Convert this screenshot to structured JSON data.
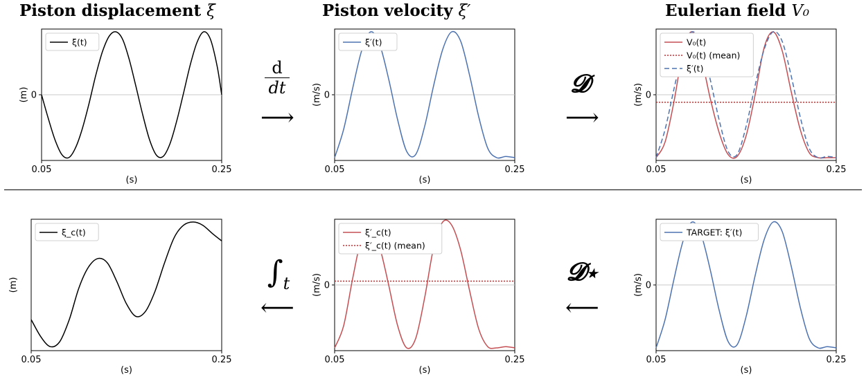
{
  "titles": {
    "displacement": "Piston displacement",
    "displacement_sym": "ξ",
    "velocity": "Piston velocity",
    "velocity_sym": "ξ′",
    "eulerian": "Eulerian field",
    "eulerian_sym": "V₀"
  },
  "operators": {
    "derivative_num": "d",
    "derivative_den": "dt",
    "forward_op": "𝓓",
    "inverse_op": "𝓓⋆",
    "integral": "∫",
    "integral_sub": "t",
    "arrow_right": "⟶",
    "arrow_left": "⟵"
  },
  "colors": {
    "black": "#000000",
    "blue": "#4c72b0",
    "red": "#c44e52",
    "red_dotted": "#d62728",
    "zero_line": "#c8c8c8"
  },
  "chart_data": [
    {
      "id": "top-left",
      "type": "line",
      "x_ticks": [
        "0.05",
        "0.25"
      ],
      "xlabel": "(s)",
      "ylabel": "(m)",
      "y_ticks": [
        "0"
      ],
      "legend": "top-left",
      "xlim": [
        0.05,
        0.25
      ],
      "series": [
        {
          "name": "ξ(t)",
          "color": "black",
          "style": "solid",
          "x": [
            0.05,
            0.0575,
            0.065,
            0.0725,
            0.08,
            0.0875,
            0.095,
            0.1025,
            0.11,
            0.1175,
            0.125,
            0.1325,
            0.14,
            0.1475,
            0.155,
            0.1625,
            0.17,
            0.1775,
            0.185,
            0.1925,
            0.2,
            0.2075,
            0.215,
            0.2225,
            0.23,
            0.2375,
            0.245,
            0.25
          ],
          "y": [
            0,
            -0.38,
            -0.72,
            -0.95,
            -1,
            -0.85,
            -0.55,
            -0.15,
            0.3,
            0.68,
            0.93,
            1,
            0.88,
            0.55,
            0.12,
            -0.33,
            -0.72,
            -0.96,
            -0.98,
            -0.78,
            -0.42,
            0.02,
            0.47,
            0.83,
            1,
            0.88,
            0.45,
            0
          ]
        }
      ],
      "ylim": [
        -1,
        1
      ]
    },
    {
      "id": "top-mid",
      "type": "line",
      "x_ticks": [
        "0.05",
        "0.25"
      ],
      "xlabel": "(s)",
      "ylabel": "(m/s)",
      "y_ticks": [
        "0"
      ],
      "legend": "top-left",
      "xlim": [
        0.05,
        0.25
      ],
      "series": [
        {
          "name": "ξ′(t)",
          "color": "blue",
          "style": "solid",
          "x": [
            0.05,
            0.06,
            0.07,
            0.08,
            0.09,
            0.1,
            0.11,
            0.12,
            0.13,
            0.14,
            0.15,
            0.16,
            0.17,
            0.18,
            0.19,
            0.2,
            0.21,
            0.22,
            0.23,
            0.24,
            0.25
          ],
          "y": [
            -1,
            -0.55,
            0.1,
            0.7,
            1,
            0.8,
            0.25,
            -0.4,
            -0.9,
            -0.95,
            -0.5,
            0.15,
            0.72,
            1,
            0.85,
            0.3,
            -0.35,
            -0.85,
            -1,
            -0.98,
            -1
          ]
        }
      ],
      "ylim": [
        -1,
        1
      ]
    },
    {
      "id": "top-right",
      "type": "line",
      "x_ticks": [
        "0.05",
        "0.25"
      ],
      "xlabel": "(s)",
      "ylabel": "(m/s)",
      "y_ticks": [
        "0"
      ],
      "legend": "top-left",
      "xlim": [
        0.05,
        0.25
      ],
      "series": [
        {
          "name": "V₀(t)",
          "color": "red",
          "style": "solid",
          "x": [
            0.05,
            0.06,
            0.07,
            0.08,
            0.09,
            0.1,
            0.11,
            0.12,
            0.13,
            0.14,
            0.15,
            0.16,
            0.17,
            0.18,
            0.19,
            0.2,
            0.21,
            0.22,
            0.23,
            0.24,
            0.25
          ],
          "y": [
            -1,
            -0.75,
            -0.1,
            0.7,
            1,
            0.6,
            -0.05,
            -0.6,
            -0.95,
            -0.98,
            -0.65,
            0,
            0.75,
            1,
            0.7,
            0.05,
            -0.55,
            -0.92,
            -1,
            -1,
            -1
          ]
        },
        {
          "name": "V₀(t) (mean)",
          "color": "red_dotted",
          "style": "dotted",
          "x": [
            0.05,
            0.25
          ],
          "y": [
            -0.12,
            -0.12
          ]
        },
        {
          "name": "ξ′(t)",
          "color": "blue",
          "style": "dashed",
          "x": [
            0.05,
            0.06,
            0.07,
            0.08,
            0.09,
            0.1,
            0.11,
            0.12,
            0.13,
            0.14,
            0.15,
            0.16,
            0.17,
            0.18,
            0.19,
            0.2,
            0.21,
            0.22,
            0.23,
            0.24,
            0.25
          ],
          "y": [
            -1,
            -0.55,
            0.1,
            0.7,
            1,
            0.8,
            0.25,
            -0.4,
            -0.9,
            -0.95,
            -0.5,
            0.15,
            0.72,
            1,
            0.85,
            0.3,
            -0.35,
            -0.85,
            -1,
            -0.98,
            -1
          ]
        }
      ],
      "ylim": [
        -1,
        1
      ]
    },
    {
      "id": "bottom-left",
      "type": "line",
      "x_ticks": [
        "0.05",
        "0.25"
      ],
      "xlabel": "(s)",
      "ylabel": "(m)",
      "y_ticks": [],
      "legend": "top-left",
      "xlim": [
        0.05,
        0.25
      ],
      "series": [
        {
          "name": "ξ_c(t)",
          "color": "black",
          "style": "solid",
          "x": [
            0.05,
            0.06,
            0.07,
            0.08,
            0.09,
            0.1,
            0.11,
            0.12,
            0.13,
            0.14,
            0.15,
            0.16,
            0.17,
            0.18,
            0.19,
            0.2,
            0.21,
            0.22,
            0.23,
            0.24,
            0.25
          ],
          "y": [
            -0.55,
            -0.82,
            -0.98,
            -0.9,
            -0.55,
            -0.05,
            0.28,
            0.42,
            0.35,
            0.05,
            -0.3,
            -0.5,
            -0.42,
            -0.1,
            0.35,
            0.75,
            0.95,
            1,
            0.95,
            0.82,
            0.7
          ]
        }
      ],
      "ylim": [
        -1,
        1
      ]
    },
    {
      "id": "bottom-mid",
      "type": "line",
      "x_ticks": [
        "0.05",
        "0.25"
      ],
      "xlabel": "(s)",
      "ylabel": "(m/s)",
      "y_ticks": [
        "0"
      ],
      "legend": "top-left",
      "xlim": [
        0.05,
        0.25
      ],
      "series": [
        {
          "name": "ξ′_c(t)",
          "color": "red",
          "style": "solid",
          "x": [
            0.05,
            0.06,
            0.07,
            0.08,
            0.09,
            0.1,
            0.11,
            0.12,
            0.13,
            0.14,
            0.15,
            0.16,
            0.17,
            0.18,
            0.19,
            0.2,
            0.21,
            0.22,
            0.23,
            0.24,
            0.25
          ],
          "y": [
            -1,
            -0.65,
            0.1,
            0.75,
            0.92,
            0.6,
            0,
            -0.65,
            -1,
            -0.85,
            -0.2,
            0.6,
            1,
            0.95,
            0.55,
            -0.1,
            -0.7,
            -0.98,
            -1,
            -0.98,
            -1
          ]
        },
        {
          "name": "ξ′_c(t) (mean)",
          "color": "red_dotted",
          "style": "dotted",
          "x": [
            0.05,
            0.25
          ],
          "y": [
            0.06,
            0.06
          ]
        }
      ],
      "ylim": [
        -1,
        1
      ]
    },
    {
      "id": "bottom-right",
      "type": "line",
      "x_ticks": [
        "0.05",
        "0.25"
      ],
      "xlabel": "(s)",
      "ylabel": "(m/s)",
      "y_ticks": [
        "0"
      ],
      "legend": "top-left",
      "xlim": [
        0.05,
        0.25
      ],
      "series": [
        {
          "name": "TARGET: ξ′(t)",
          "color": "blue",
          "style": "solid",
          "x": [
            0.05,
            0.06,
            0.07,
            0.08,
            0.09,
            0.1,
            0.11,
            0.12,
            0.13,
            0.14,
            0.15,
            0.16,
            0.17,
            0.18,
            0.19,
            0.2,
            0.21,
            0.22,
            0.23,
            0.24,
            0.25
          ],
          "y": [
            -1,
            -0.55,
            0.1,
            0.7,
            1,
            0.8,
            0.25,
            -0.4,
            -0.9,
            -0.95,
            -0.5,
            0.15,
            0.72,
            1,
            0.85,
            0.3,
            -0.35,
            -0.85,
            -1,
            -0.98,
            -1
          ]
        }
      ],
      "ylim": [
        -1,
        1
      ]
    }
  ]
}
